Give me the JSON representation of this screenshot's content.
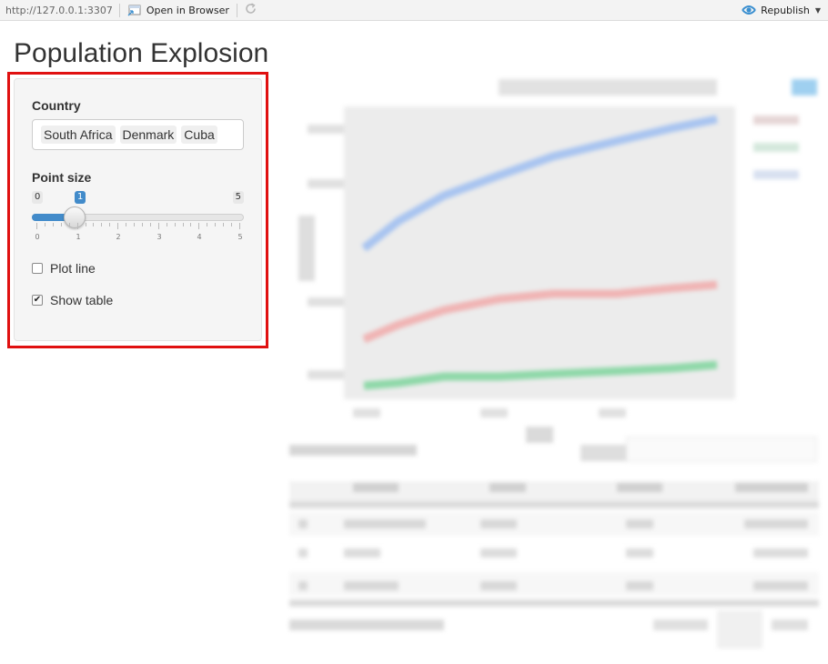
{
  "toolbar": {
    "url": "http://127.0.0.1:3307",
    "open_in_browser": "Open in Browser",
    "republish": "Republish"
  },
  "page": {
    "title": "Population Explosion"
  },
  "sidebar": {
    "country_label": "Country",
    "selected_countries": [
      "South Africa",
      "Denmark",
      "Cuba"
    ],
    "point_size": {
      "label": "Point size",
      "min": "0",
      "max": "5",
      "value": "1",
      "value_fraction": 0.2,
      "ticks": [
        "0",
        "1",
        "2",
        "3",
        "4",
        "5"
      ]
    },
    "plot_line": {
      "label": "Plot line",
      "checked": false
    },
    "show_table": {
      "label": "Show table",
      "checked": true
    }
  },
  "colors": {
    "accent": "#428bca",
    "highlight": "#e01010",
    "toolbar_icon": "#3a8fd0"
  }
}
